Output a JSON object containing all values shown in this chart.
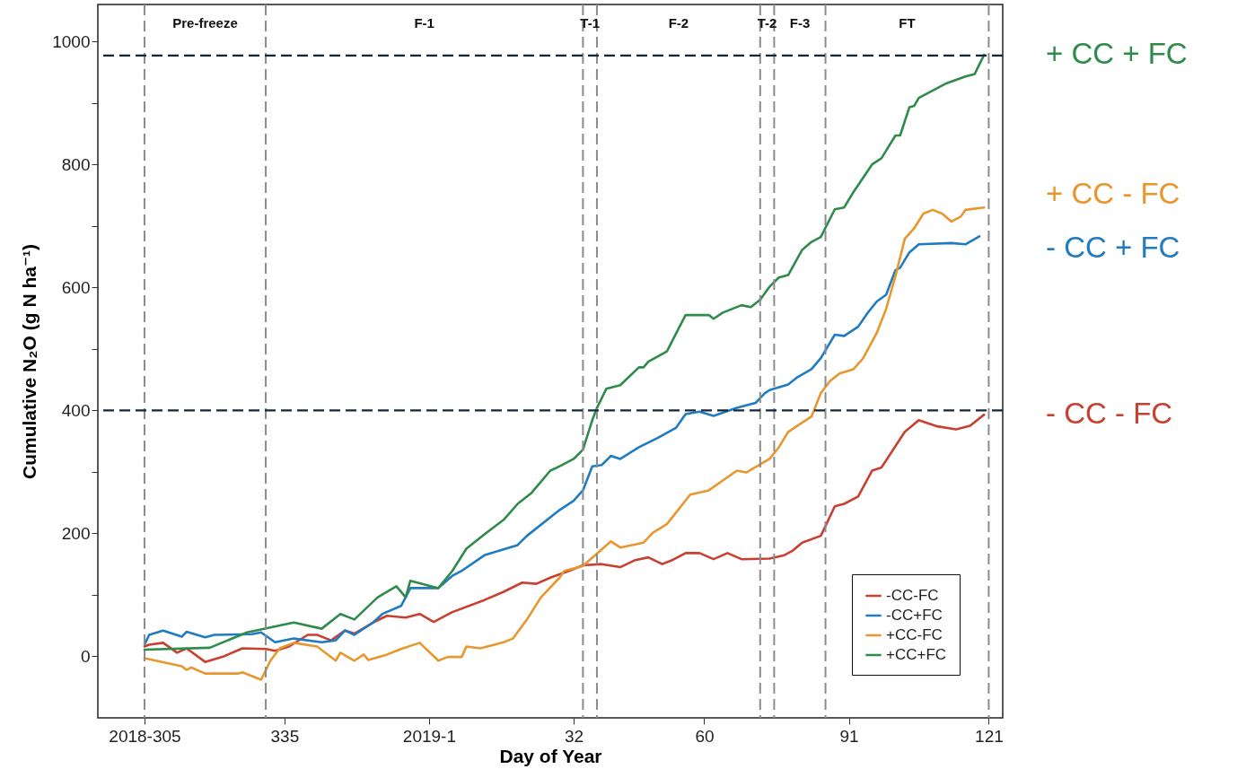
{
  "chart_data": {
    "type": "line",
    "xlabel": "Day of Year",
    "ylabel": "Cumulative N₂O (g N ha⁻¹)",
    "xlim": [
      "2018-10-22",
      "2019-05-04"
    ],
    "ylim": [
      -100,
      1060
    ],
    "xticks": [
      {
        "value": "2018-11-01",
        "label": "2018-305"
      },
      {
        "value": "2018-12-01",
        "label": "335"
      },
      {
        "value": "2019-01-01",
        "label": "2019-1"
      },
      {
        "value": "2019-02-01",
        "label": "32"
      },
      {
        "value": "2019-03-01",
        "label": "60"
      },
      {
        "value": "2019-04-01",
        "label": "91"
      },
      {
        "value": "2019-05-01",
        "label": "121"
      }
    ],
    "yticks": [
      0,
      {
        "value": 100,
        "label": null
      },
      200,
      {
        "value": 300,
        "label": null
      },
      400,
      {
        "value": 500,
        "label": null
      },
      600,
      {
        "value": 700,
        "label": null
      },
      800,
      {
        "value": 900,
        "label": null
      },
      1000
    ],
    "grid": false,
    "legend": "bottom right",
    "series": [
      {
        "name": "-CC-FC",
        "color": "#c8402f",
        "x": [
          "2018-11-01",
          "2018-11-02",
          "2018-11-05",
          "2018-11-08",
          "2018-11-10",
          "2018-11-14",
          "2018-11-18",
          "2018-11-22",
          "2018-11-27",
          "2018-11-29",
          "2018-12-02",
          "2018-12-06",
          "2018-12-08",
          "2018-12-11",
          "2018-12-14",
          "2018-12-16",
          "2018-12-20",
          "2018-12-23",
          "2018-12-27",
          "2018-12-30",
          "2019-01-02",
          "2019-01-06",
          "2019-01-13",
          "2019-01-17",
          "2019-01-21",
          "2019-01-24",
          "2019-01-27",
          "2019-01-31",
          "2019-02-03",
          "2019-02-07",
          "2019-02-11",
          "2019-02-14",
          "2019-02-17",
          "2019-02-20",
          "2019-02-22",
          "2019-02-25",
          "2019-02-28",
          "2019-03-03",
          "2019-03-06",
          "2019-03-09",
          "2019-03-15",
          "2019-03-18",
          "2019-03-20",
          "2019-03-22",
          "2019-03-26",
          "2019-03-29",
          "2019-03-31",
          "2019-04-03",
          "2019-04-06",
          "2019-04-08",
          "2019-04-13",
          "2019-04-16",
          "2019-04-20",
          "2019-04-24",
          "2019-04-27",
          "2019-04-30"
        ],
        "values": [
          16,
          19,
          22,
          6,
          13,
          -9,
          0,
          13,
          12,
          9,
          16,
          35,
          35,
          26,
          42,
          37,
          55,
          66,
          63,
          69,
          56,
          72,
          92,
          105,
          120,
          118,
          128,
          139,
          148,
          150,
          145,
          156,
          161,
          150,
          156,
          168,
          168,
          158,
          168,
          158,
          159,
          164,
          172,
          185,
          196,
          244,
          248,
          260,
          302,
          307,
          365,
          384,
          374,
          369,
          375,
          393
        ]
      },
      {
        "name": "-CC+FC",
        "color": "#1f7bc2",
        "x": [
          "2018-11-01",
          "2018-11-02",
          "2018-11-05",
          "2018-11-09",
          "2018-11-10",
          "2018-11-14",
          "2018-11-16",
          "2018-11-24",
          "2018-11-26",
          "2018-11-29",
          "2018-12-03",
          "2018-12-09",
          "2018-12-12",
          "2018-12-14",
          "2018-12-16",
          "2018-12-20",
          "2018-12-22",
          "2018-12-26",
          "2018-12-27",
          "2018-12-28",
          "2019-01-03",
          "2019-01-06",
          "2019-01-08",
          "2019-01-13",
          "2019-01-20",
          "2019-01-22",
          "2019-01-29",
          "2019-02-01",
          "2019-02-03",
          "2019-02-05",
          "2019-02-07",
          "2019-02-09",
          "2019-02-11",
          "2019-02-15",
          "2019-02-19",
          "2019-02-23",
          "2019-02-25",
          "2019-02-28",
          "2019-03-03",
          "2019-03-08",
          "2019-03-12",
          "2019-03-14",
          "2019-03-15",
          "2019-03-19",
          "2019-03-21",
          "2019-03-24",
          "2019-03-26",
          "2019-03-29",
          "2019-03-31",
          "2019-04-03",
          "2019-04-05",
          "2019-04-07",
          "2019-04-09",
          "2019-04-11",
          "2019-04-12",
          "2019-04-14",
          "2019-04-16",
          "2019-04-23",
          "2019-04-26",
          "2019-04-29"
        ],
        "values": [
          19,
          35,
          42,
          32,
          40,
          31,
          35,
          36,
          39,
          23,
          29,
          23,
          26,
          42,
          35,
          55,
          69,
          82,
          96,
          111,
          111,
          131,
          139,
          165,
          181,
          196,
          238,
          253,
          270,
          309,
          311,
          326,
          321,
          340,
          355,
          372,
          394,
          398,
          391,
          404,
          412,
          428,
          433,
          442,
          454,
          467,
          485,
          523,
          521,
          536,
          558,
          577,
          588,
          628,
          632,
          657,
          670,
          672,
          670,
          683
        ]
      },
      {
        "name": "+CC-FC",
        "color": "#e8972f",
        "x": [
          "2018-11-01",
          "2018-11-09",
          "2018-11-10",
          "2018-11-11",
          "2018-11-14",
          "2018-11-21",
          "2018-11-22",
          "2018-11-26",
          "2018-11-28",
          "2018-11-30",
          "2018-12-03",
          "2018-12-08",
          "2018-12-12",
          "2018-12-13",
          "2018-12-16",
          "2018-12-18",
          "2018-12-19",
          "2018-12-23",
          "2018-12-26",
          "2018-12-30",
          "2019-01-03",
          "2019-01-05",
          "2019-01-08",
          "2019-01-09",
          "2019-01-12",
          "2019-01-15",
          "2019-01-17",
          "2019-01-19",
          "2019-01-22",
          "2019-01-25",
          "2019-01-29",
          "2019-01-30",
          "2019-02-03",
          "2019-02-09",
          "2019-02-11",
          "2019-02-16",
          "2019-02-18",
          "2019-02-21",
          "2019-02-26",
          "2019-03-02",
          "2019-03-08",
          "2019-03-10",
          "2019-03-15",
          "2019-03-17",
          "2019-03-19",
          "2019-03-24",
          "2019-03-26",
          "2019-03-28",
          "2019-03-30",
          "2019-04-02",
          "2019-04-04",
          "2019-04-07",
          "2019-04-09",
          "2019-04-11",
          "2019-04-13",
          "2019-04-15",
          "2019-04-17",
          "2019-04-19",
          "2019-04-21",
          "2019-04-23",
          "2019-04-25",
          "2019-04-26",
          "2019-04-30"
        ],
        "values": [
          -3,
          -16,
          -22,
          -18,
          -28,
          -28,
          -26,
          -38,
          -7,
          13,
          22,
          16,
          -7,
          6,
          -7,
          3,
          -6,
          3,
          12,
          22,
          -7,
          -1,
          -1,
          16,
          13,
          19,
          23,
          29,
          60,
          96,
          128,
          139,
          147,
          187,
          177,
          185,
          201,
          215,
          263,
          270,
          302,
          299,
          321,
          340,
          365,
          390,
          428,
          448,
          460,
          467,
          484,
          526,
          565,
          618,
          679,
          696,
          720,
          726,
          720,
          707,
          715,
          726,
          730
        ]
      },
      {
        "name": "+CC+FC",
        "color": "#2e8b4a",
        "x": [
          "2018-11-01",
          "2018-11-15",
          "2018-11-23",
          "2018-12-03",
          "2018-12-09",
          "2018-12-13",
          "2018-12-16",
          "2018-12-21",
          "2018-12-25",
          "2018-12-27",
          "2018-12-28",
          "2019-01-03",
          "2019-01-06",
          "2019-01-09",
          "2019-01-13",
          "2019-01-17",
          "2019-01-20",
          "2019-01-23",
          "2019-01-27",
          "2019-01-29",
          "2019-02-01",
          "2019-02-03",
          "2019-02-05",
          "2019-02-06",
          "2019-02-08",
          "2019-02-11",
          "2019-02-15",
          "2019-02-16",
          "2019-02-17",
          "2019-02-21",
          "2019-02-25",
          "2019-03-02",
          "2019-03-03",
          "2019-03-05",
          "2019-03-09",
          "2019-03-11",
          "2019-03-13",
          "2019-03-15",
          "2019-03-17",
          "2019-03-19",
          "2019-03-22",
          "2019-03-24",
          "2019-03-26",
          "2019-03-29",
          "2019-03-31",
          "2019-04-02",
          "2019-04-06",
          "2019-04-08",
          "2019-04-11",
          "2019-04-12",
          "2019-04-14",
          "2019-04-15",
          "2019-04-16",
          "2019-04-22",
          "2019-04-26",
          "2019-04-28",
          "2019-04-30"
        ],
        "values": [
          11,
          14,
          39,
          55,
          45,
          69,
          60,
          96,
          114,
          96,
          123,
          111,
          139,
          175,
          199,
          222,
          248,
          266,
          302,
          309,
          321,
          336,
          384,
          404,
          435,
          441,
          470,
          470,
          479,
          496,
          555,
          555,
          549,
          559,
          571,
          568,
          580,
          601,
          616,
          620,
          661,
          674,
          682,
          727,
          730,
          755,
          800,
          810,
          847,
          847,
          893,
          895,
          908,
          932,
          943,
          947,
          978
        ]
      }
    ],
    "ref_lines": [
      {
        "axis": "x",
        "value": "2018-11-01",
        "color": "#8c8c8c",
        "line_style": "dashed"
      },
      {
        "axis": "x",
        "value": "2018-11-27",
        "color": "#8c8c8c",
        "line_style": "dashed"
      },
      {
        "axis": "x",
        "value": "2019-02-03",
        "color": "#8c8c8c",
        "line_style": "dashed"
      },
      {
        "axis": "x",
        "value": "2019-02-06",
        "color": "#8c8c8c",
        "line_style": "dashed"
      },
      {
        "axis": "x",
        "value": "2019-03-13",
        "color": "#8c8c8c",
        "line_style": "dashed"
      },
      {
        "axis": "x",
        "value": "2019-03-16",
        "color": "#8c8c8c",
        "line_style": "dashed"
      },
      {
        "axis": "x",
        "value": "2019-03-27",
        "color": "#8c8c8c",
        "line_style": "dashed"
      },
      {
        "axis": "x",
        "value": "2019-05-01",
        "color": "#8c8c8c",
        "line_style": "dashed"
      },
      {
        "axis": "y",
        "value": 977,
        "color": "#14263a",
        "line_style": "dashed"
      },
      {
        "axis": "y",
        "value": 400,
        "color": "#14263a",
        "line_style": "dashed"
      }
    ],
    "annotations": [
      "Pre-freeze",
      "F-1",
      "T-1",
      "F-2",
      "T-2",
      "F-3",
      "FT",
      "+ CC + FC",
      "+ CC - FC",
      "- CC + FC",
      "- CC - FC"
    ]
  }
}
